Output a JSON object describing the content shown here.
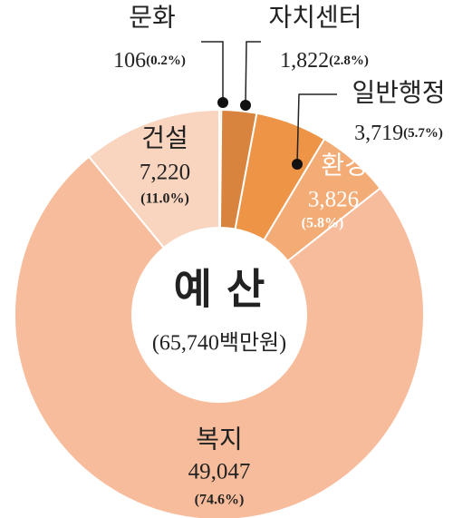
{
  "chart_data": {
    "type": "donut",
    "center_title": "예 산",
    "center_subtitle": "(65,740백만원)",
    "categories": [
      "문화",
      "자치센터",
      "일반행정",
      "환경",
      "복지",
      "건설"
    ],
    "values": [
      106,
      1822,
      3719,
      3826,
      49047,
      7220
    ],
    "value_labels": [
      "106",
      "1,822",
      "3,719",
      "3,826",
      "49,047",
      "7,220"
    ],
    "percent_labels": [
      "(0.2%)",
      "(2.8%)",
      "(5.7%)",
      "(5.8%)",
      "(74.6%)",
      "(11.0%)"
    ],
    "colors": [
      "#b56e36",
      "#d8843e",
      "#ee9446",
      "#f3ac76",
      "#f7bc9b",
      "#f9d4bf"
    ]
  }
}
